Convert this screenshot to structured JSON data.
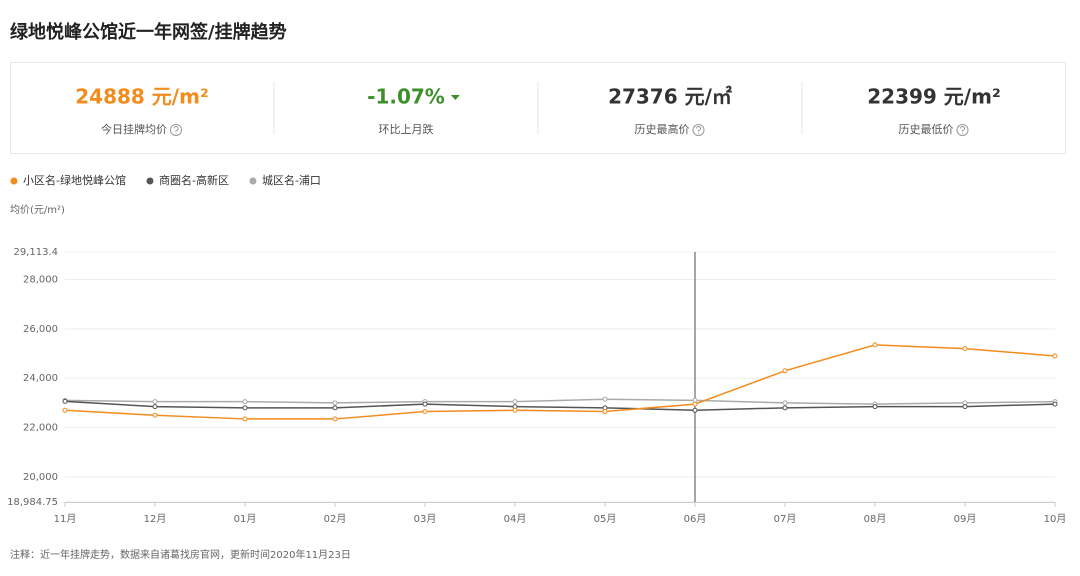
{
  "title": "绿地悦峰公馆近一年网签/挂牌趋势",
  "stats": [
    {
      "value": "24888 元/m²",
      "label": "今日挂牌均价",
      "color": "#f28c1c"
    },
    {
      "value": "-1.07%",
      "label": "环比上月跌",
      "color": "#3e8e2a"
    },
    {
      "value": "27376 元/㎡",
      "label": "历史最高价",
      "color": "#333333"
    },
    {
      "value": "22399 元/m²",
      "label": "历史最低价",
      "color": "#333333"
    }
  ],
  "chart_data": {
    "type": "line",
    "y_label": "均价(元/m²)",
    "categories": [
      "11月",
      "12月",
      "01月",
      "02月",
      "03月",
      "04月",
      "05月",
      "06月",
      "07月",
      "08月",
      "09月",
      "10月"
    ],
    "series": [
      {
        "name": "小区名-绿地悦峰公馆",
        "color": "#f28c1c",
        "values": [
          22700,
          22500,
          22350,
          22350,
          22650,
          22700,
          22650,
          22950,
          24300,
          25350,
          25200,
          24900
        ]
      },
      {
        "name": "商圈名-高新区",
        "color": "#555555",
        "values": [
          23060,
          22850,
          22800,
          22800,
          22950,
          22850,
          22800,
          22700,
          22800,
          22850,
          22850,
          22950
        ]
      },
      {
        "name": "城区名-浦口",
        "color": "#aaaaaa",
        "values": [
          23100,
          23050,
          23050,
          23000,
          23050,
          23050,
          23150,
          23100,
          23000,
          22950,
          23000,
          23050
        ]
      }
    ],
    "ylim": [
      18984.75,
      29113.4
    ],
    "yticks": [
      {
        "value": 18984.75,
        "label": "18,984.75"
      },
      {
        "value": 20000,
        "label": "20,000"
      },
      {
        "value": 22000,
        "label": "22,000"
      },
      {
        "value": 24000,
        "label": "24,000"
      },
      {
        "value": 26000,
        "label": "26,000"
      },
      {
        "value": 28000,
        "label": "28,000"
      },
      {
        "value": 29113.4,
        "label": "29,113.4"
      }
    ],
    "grid": true,
    "crosshair_index": 7,
    "note": "注释：近一年挂牌走势，数据来自诸葛找房官网，更新时间2020年11月23日"
  }
}
